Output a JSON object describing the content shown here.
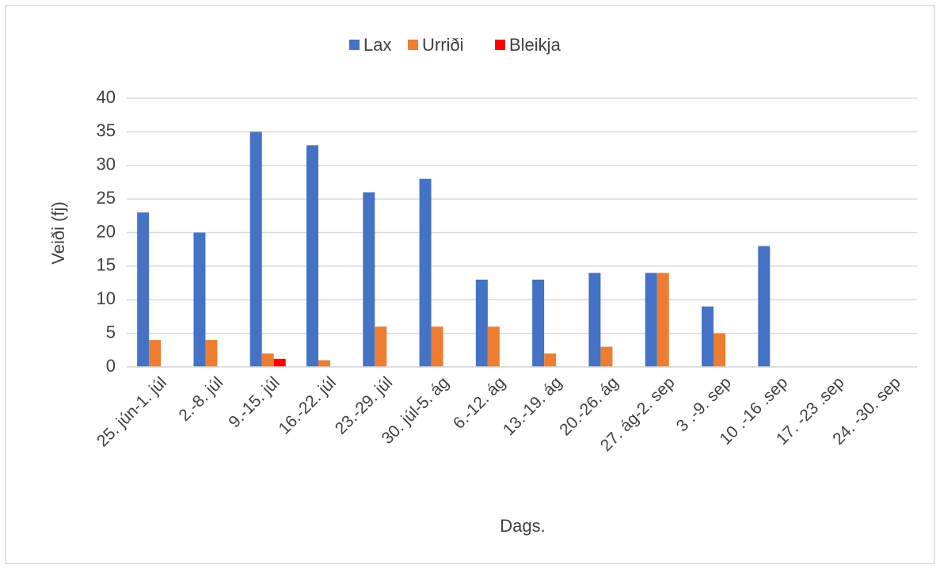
{
  "chart_data": {
    "type": "bar",
    "categories": [
      "25. jún-1. júl",
      "2.-8. júl",
      "9.-15. júl",
      "16.-22. júl",
      "23.-29. júl",
      "30. júl-5. ág",
      "6.-12. ág",
      "13.-19. ág",
      "20.-26. ág",
      "27. ág-2. sep",
      "3 .-9. sep",
      "10 .-16 .sep",
      "17. -23 .sep",
      "24. -30. sep"
    ],
    "series": [
      {
        "name": "Lax",
        "color": "#4472c4",
        "values": [
          23,
          20,
          35,
          33,
          26,
          28,
          13,
          13,
          14,
          14,
          9,
          18,
          0,
          0
        ]
      },
      {
        "name": "Urriði",
        "color": "#ed7d31",
        "values": [
          4,
          4,
          2,
          1,
          6,
          6,
          6,
          2,
          3,
          14,
          5,
          0,
          0,
          0
        ]
      },
      {
        "name": "Bleikja",
        "color": "#ff0000",
        "values": [
          0,
          0,
          1.2,
          0,
          0,
          0,
          0,
          0,
          0,
          0,
          0,
          0,
          0,
          0
        ]
      }
    ],
    "ylabel": "Veiði (fj)",
    "xlabel": "Dags.",
    "ylim": [
      0,
      40
    ],
    "yticks": [
      0,
      5,
      10,
      15,
      20,
      25,
      30,
      35,
      40
    ],
    "grid": true,
    "legend": "top"
  }
}
